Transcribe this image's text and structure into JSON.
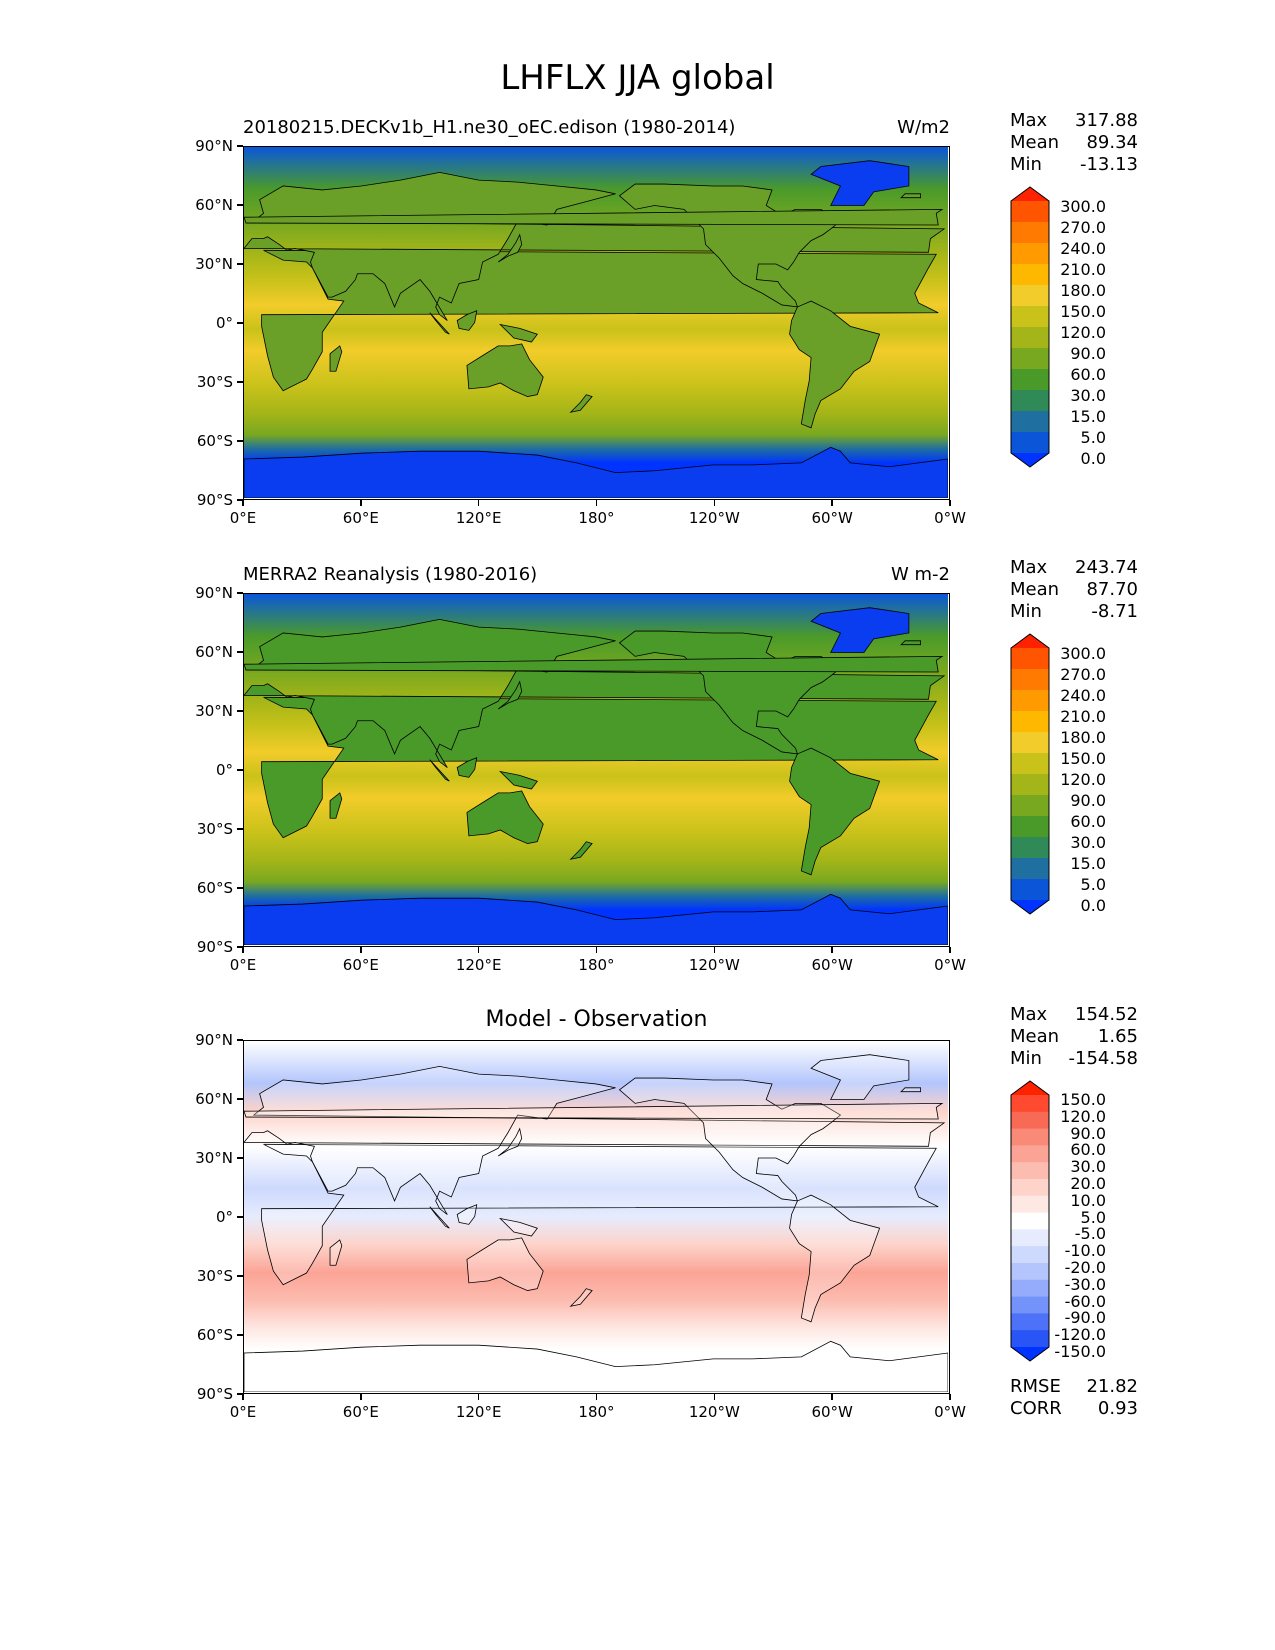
{
  "title": "LHFLX JJA global",
  "axes": {
    "lat_ticks": [
      "90°N",
      "60°N",
      "30°N",
      "0°",
      "30°S",
      "60°S",
      "90°S"
    ],
    "lon_ticks": [
      "0°E",
      "60°E",
      "120°E",
      "180°",
      "120°W",
      "60°W",
      "0°W"
    ]
  },
  "panels": [
    {
      "id": "model",
      "title": "20180215.DECKv1b_H1.ne30_oEC.edison (1980-2014)",
      "units": "W/m2",
      "stats": [
        {
          "label": "Max",
          "value": "317.88"
        },
        {
          "label": "Mean",
          "value": "89.34"
        },
        {
          "label": "Min",
          "value": "-13.13"
        }
      ],
      "colorbar": {
        "levels": [
          "300.0",
          "270.0",
          "240.0",
          "210.0",
          "180.0",
          "150.0",
          "120.0",
          "90.0",
          "60.0",
          "30.0",
          "15.0",
          "5.0",
          "0.0"
        ],
        "colors": [
          "#ff2200",
          "#ff5500",
          "#ff7a00",
          "#ff9a00",
          "#ffb800",
          "#f2cc2a",
          "#c9c21a",
          "#a3b518",
          "#78a820",
          "#4a9a2a",
          "#2f8a58",
          "#1f6fa0",
          "#0a55d8",
          "#0033ff"
        ]
      }
    },
    {
      "id": "obs",
      "title": "MERRA2 Reanalysis (1980-2016)",
      "units": "W m-2",
      "stats": [
        {
          "label": "Max",
          "value": "243.74"
        },
        {
          "label": "Mean",
          "value": "87.70"
        },
        {
          "label": "Min",
          "value": "-8.71"
        }
      ],
      "colorbar": {
        "levels": [
          "300.0",
          "270.0",
          "240.0",
          "210.0",
          "180.0",
          "150.0",
          "120.0",
          "90.0",
          "60.0",
          "30.0",
          "15.0",
          "5.0",
          "0.0"
        ],
        "colors": [
          "#ff2200",
          "#ff5500",
          "#ff7a00",
          "#ff9a00",
          "#ffb800",
          "#f2cc2a",
          "#c9c21a",
          "#a3b518",
          "#78a820",
          "#4a9a2a",
          "#2f8a58",
          "#1f6fa0",
          "#0a55d8",
          "#0033ff"
        ]
      }
    },
    {
      "id": "diff",
      "title": "Model - Observation",
      "units": "",
      "stats": [
        {
          "label": "Max",
          "value": "154.52"
        },
        {
          "label": "Mean",
          "value": "1.65"
        },
        {
          "label": "Min",
          "value": "-154.58"
        }
      ],
      "extra_stats": [
        {
          "label": "RMSE",
          "value": "21.82"
        },
        {
          "label": "CORR",
          "value": "0.93"
        }
      ],
      "colorbar": {
        "levels": [
          "150.0",
          "120.0",
          "90.0",
          "60.0",
          "30.0",
          "20.0",
          "10.0",
          "5.0",
          "-5.0",
          "-10.0",
          "-20.0",
          "-30.0",
          "-60.0",
          "-90.0",
          "-120.0",
          "-150.0"
        ],
        "colors": [
          "#ff2200",
          "#ff4a30",
          "#f86a55",
          "#f98a78",
          "#fba496",
          "#fcbcb0",
          "#fdd3ca",
          "#fee8e3",
          "#ffffff",
          "#e6ecfe",
          "#cdd9fd",
          "#b3c5fc",
          "#94acfb",
          "#7392fa",
          "#4d72f8",
          "#2a55f6",
          "#0033ff"
        ]
      }
    }
  ]
}
